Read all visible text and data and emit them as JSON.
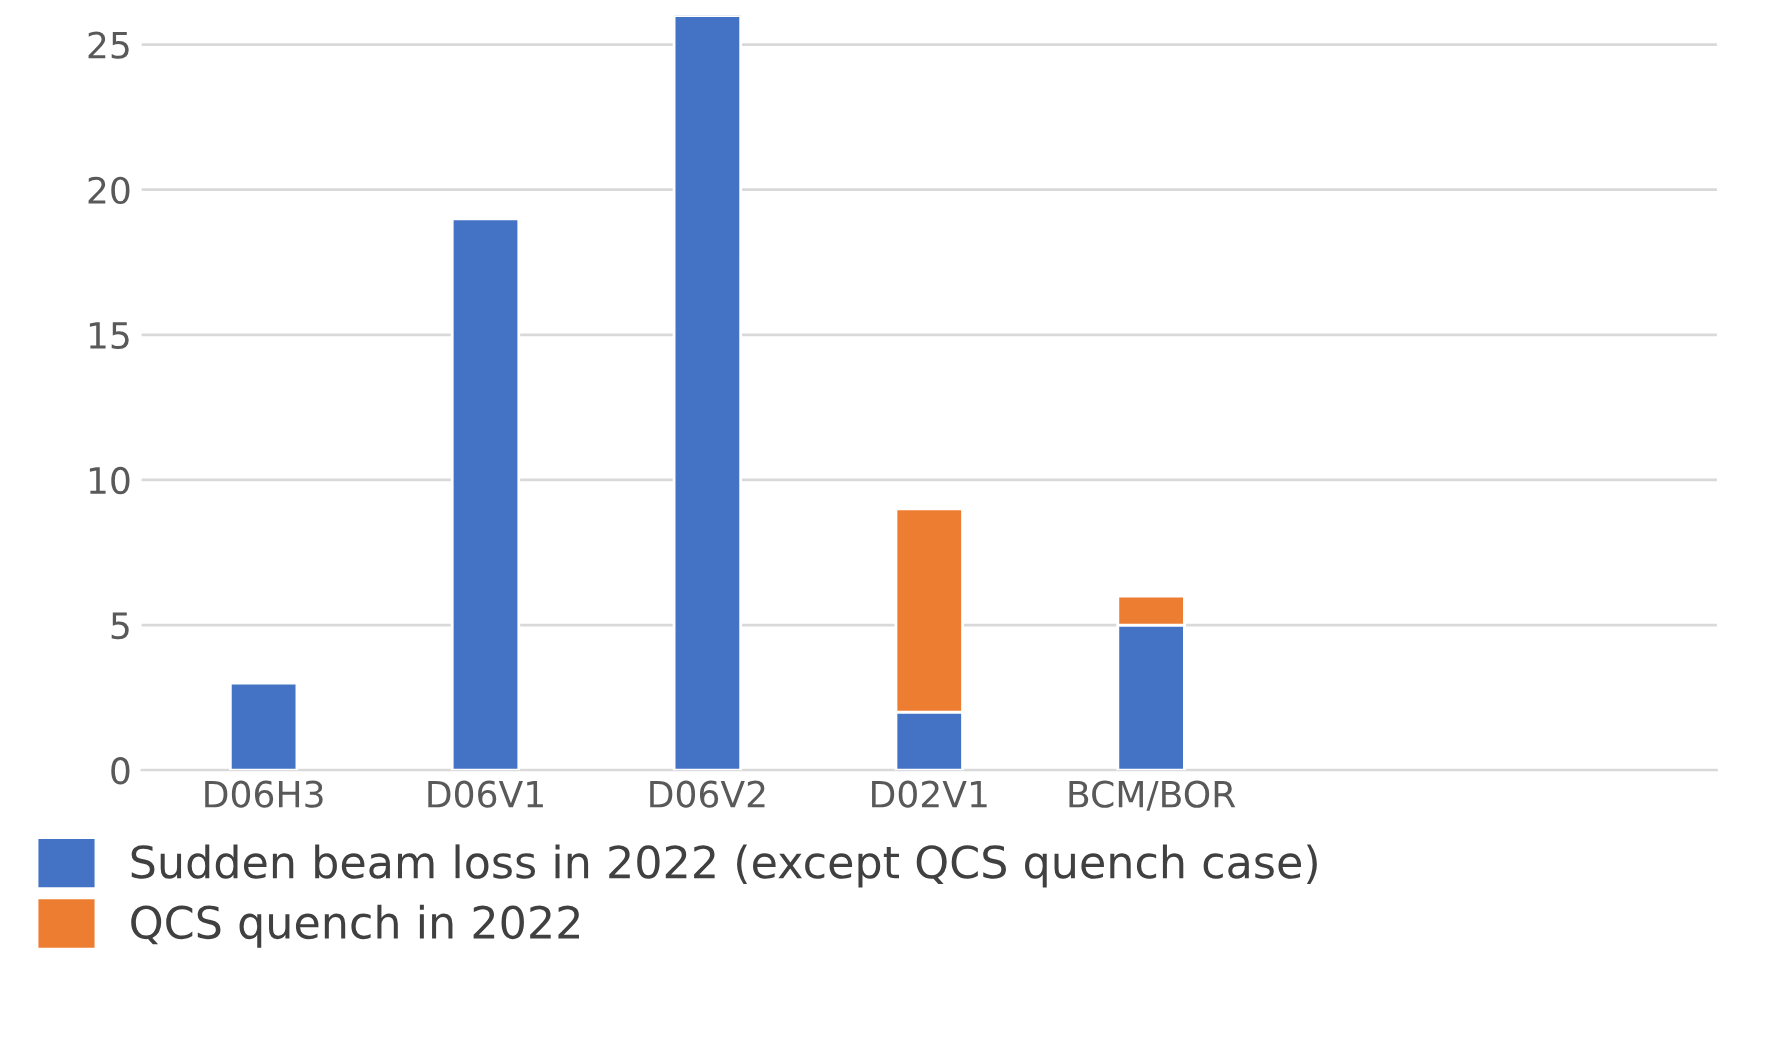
{
  "chart_data": {
    "type": "bar",
    "stacked": true,
    "categories": [
      "D06H3",
      "D06V1",
      "D06V2",
      "D02V1",
      "BCM/BOR",
      null,
      null
    ],
    "series": [
      {
        "name": "Sudden beam loss in 2022 (except QCS quench case)",
        "color": "#4472c4",
        "values": [
          3,
          19,
          26,
          2,
          5,
          null,
          null
        ]
      },
      {
        "name": "QCS quench in 2022",
        "color": "#ed7d31",
        "values": [
          null,
          null,
          null,
          7,
          1,
          null,
          null
        ]
      }
    ],
    "ylim": [
      0,
      26
    ],
    "yticks": [
      0,
      5,
      10,
      15,
      20,
      25
    ],
    "grid": "y",
    "legend": "bottom"
  }
}
